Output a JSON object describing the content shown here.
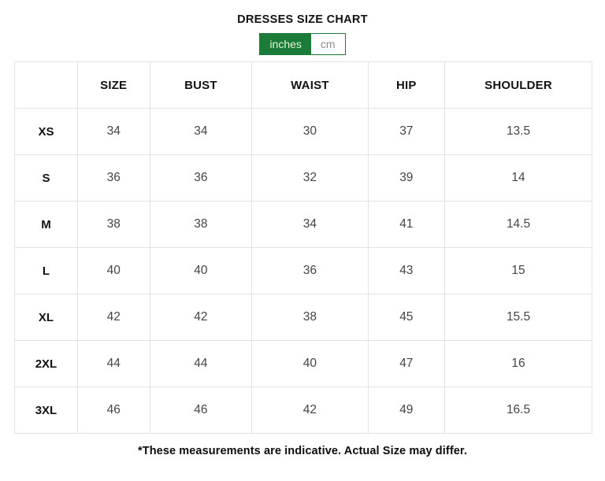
{
  "page": {
    "title": "DRESSES SIZE CHART",
    "footnote": "*These measurements are indicative. Actual Size may differ."
  },
  "unit_toggle": {
    "options": [
      {
        "label": "inches",
        "selected": true
      },
      {
        "label": "cm",
        "selected": false
      }
    ]
  },
  "table": {
    "headers": [
      "",
      "SIZE",
      "BUST",
      "WAIST",
      "HIP",
      "SHOULDER"
    ],
    "col_widths_pct": [
      10.9,
      12.5,
      17.7,
      20.1,
      13.3,
      25.5
    ],
    "rows": [
      {
        "label": "XS",
        "values": [
          "34",
          "34",
          "30",
          "37",
          "13.5"
        ]
      },
      {
        "label": "S",
        "values": [
          "36",
          "36",
          "32",
          "39",
          "14"
        ]
      },
      {
        "label": "M",
        "values": [
          "38",
          "38",
          "34",
          "41",
          "14.5"
        ]
      },
      {
        "label": "L",
        "values": [
          "40",
          "40",
          "36",
          "43",
          "15"
        ]
      },
      {
        "label": "XL",
        "values": [
          "42",
          "42",
          "38",
          "45",
          "15.5"
        ]
      },
      {
        "label": "2XL",
        "values": [
          "44",
          "44",
          "40",
          "47",
          "16"
        ]
      },
      {
        "label": "3XL",
        "values": [
          "46",
          "46",
          "42",
          "49",
          "16.5"
        ]
      }
    ]
  },
  "colors": {
    "accent_green": "#1b7c39",
    "toggle_active_text": "#e5f2cf",
    "toggle_inactive_text": "#8b8b8b",
    "table_border": "#e3e3e3",
    "cell_text": "#454545",
    "heading_text": "#121212"
  }
}
